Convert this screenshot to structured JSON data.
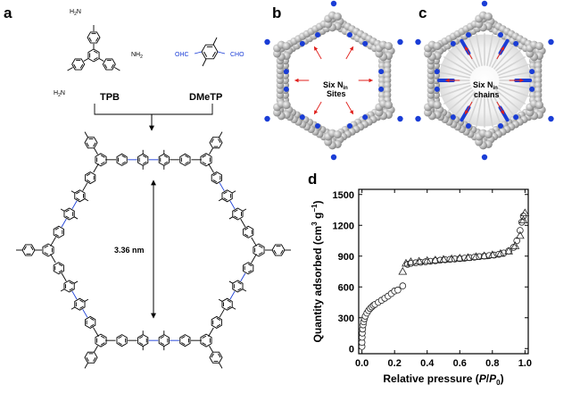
{
  "panels": {
    "a": "a",
    "b": "b",
    "c": "c",
    "d": "d"
  },
  "panel_a": {
    "monomer1_name": "TPB",
    "monomer2_name": "DMeTP",
    "nh2": "NH",
    "nh2_sub": "2",
    "h2n": "H",
    "h2n_sub": "2",
    "h2n_n": "N",
    "ohc": "OHC",
    "cho": "CHO",
    "pore_size": "3.36 nm"
  },
  "panel_b": {
    "line1": "Six N",
    "line1_sub": "in",
    "line2": "Sites"
  },
  "panel_c": {
    "line1": "Six N",
    "line1_sub": "in",
    "line2": "chains"
  },
  "colors": {
    "nitrogen": "#1a3dd6",
    "arrow": "#e0201c",
    "framework": "#b8b8b8"
  },
  "chart_data": {
    "type": "scatter",
    "xlabel": "Relative pressure (P/P0)",
    "ylabel": "Quantity adsorbed (cm3 g-1)",
    "xlim": [
      -0.02,
      1.02
    ],
    "ylim": [
      -50,
      1550
    ],
    "xticks": [
      "0.0",
      "0.2",
      "0.4",
      "0.6",
      "0.8",
      "1.0"
    ],
    "yticks": [
      "0",
      "300",
      "600",
      "900",
      "1200",
      "1500"
    ],
    "grid": false,
    "legend": "none",
    "series": [
      {
        "marker": "circle",
        "x": [
          0.0,
          0.0,
          0.001,
          0.002,
          0.004,
          0.007,
          0.01,
          0.015,
          0.02,
          0.03,
          0.04,
          0.05,
          0.06,
          0.07,
          0.08,
          0.1,
          0.12,
          0.14,
          0.16,
          0.18,
          0.2,
          0.22,
          0.25,
          0.28,
          0.3,
          0.33,
          0.36,
          0.39,
          0.42,
          0.45,
          0.48,
          0.51,
          0.54,
          0.57,
          0.6,
          0.63,
          0.66,
          0.69,
          0.72,
          0.75,
          0.78,
          0.81,
          0.84,
          0.87,
          0.9,
          0.93,
          0.95,
          0.97,
          0.98,
          0.99
        ],
        "y": [
          20,
          60,
          110,
          150,
          190,
          230,
          260,
          290,
          315,
          345,
          370,
          390,
          405,
          420,
          430,
          450,
          470,
          490,
          510,
          535,
          560,
          570,
          610,
          820,
          830,
          835,
          840,
          845,
          850,
          855,
          860,
          865,
          868,
          872,
          876,
          880,
          885,
          890,
          895,
          900,
          905,
          910,
          918,
          930,
          950,
          985,
          1050,
          1150,
          1230,
          1290
        ]
      },
      {
        "marker": "triangle",
        "x": [
          0.25,
          0.27,
          0.3,
          0.35,
          0.4,
          0.45,
          0.5,
          0.55,
          0.6,
          0.65,
          0.7,
          0.75,
          0.8,
          0.85,
          0.9,
          0.94,
          0.97,
          0.99,
          1.0
        ],
        "y": [
          750,
          830,
          845,
          850,
          856,
          862,
          868,
          874,
          880,
          886,
          894,
          902,
          912,
          925,
          948,
          1000,
          1100,
          1250,
          1320
        ]
      }
    ]
  }
}
